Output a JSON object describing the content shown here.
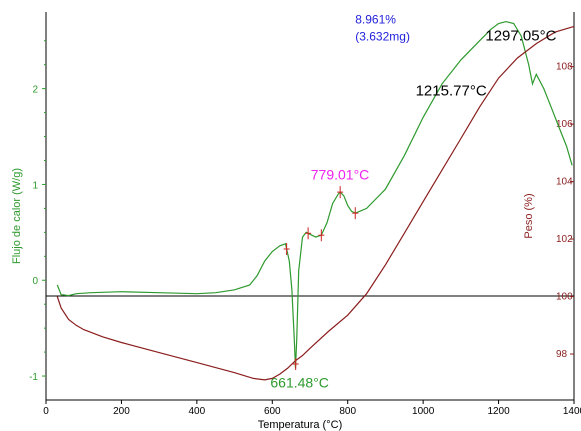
{
  "chart_data": {
    "type": "line",
    "xlabel": "Temperatura (°C)",
    "ylabel_left": "Flujo de calor (W/g)",
    "ylabel_right": "Peso (%)",
    "xlim": [
      0,
      1400
    ],
    "ylim_left": [
      -1.25,
      2.8
    ],
    "ylim_right": [
      96.4,
      109.9
    ],
    "x_ticks": [
      "0",
      "200",
      "400",
      "600",
      "800",
      "1000",
      "1200",
      "1400"
    ],
    "y_left_ticks": [
      "-1",
      "0",
      "1",
      "2"
    ],
    "y_right_ticks": [
      "98",
      "100",
      "102",
      "104",
      "106",
      "108"
    ],
    "grid": false,
    "colors": {
      "heat_flow": "#2e9a2e",
      "weight": "#8b1e1e",
      "annot_blue": "#2222dd",
      "annot_magenta": "#ee22ee",
      "annot_green": "#2e9a2e",
      "annot_black": "#000000"
    },
    "series": [
      {
        "axis": "left",
        "x": [
          30,
          35,
          40,
          60,
          80,
          120,
          200,
          300,
          400,
          450,
          500,
          540,
          560,
          580,
          600,
          620,
          635,
          645,
          652,
          658,
          661.5,
          665,
          670,
          680,
          690,
          700,
          715,
          730,
          745,
          760,
          775,
          780,
          790,
          800,
          810,
          820,
          850,
          900,
          950,
          1000,
          1050,
          1100,
          1150,
          1180,
          1200,
          1220,
          1240,
          1260,
          1280,
          1290,
          1300,
          1320,
          1340,
          1360,
          1380,
          1395
        ],
        "values": [
          -0.05,
          -0.1,
          -0.15,
          -0.16,
          -0.14,
          -0.13,
          -0.12,
          -0.13,
          -0.14,
          -0.13,
          -0.1,
          -0.05,
          0.05,
          0.2,
          0.3,
          0.36,
          0.38,
          0.2,
          -0.1,
          -0.6,
          -0.92,
          -0.6,
          0.1,
          0.45,
          0.5,
          0.48,
          0.45,
          0.47,
          0.6,
          0.8,
          0.9,
          0.92,
          0.88,
          0.78,
          0.72,
          0.7,
          0.75,
          0.95,
          1.3,
          1.7,
          2.05,
          2.3,
          2.5,
          2.62,
          2.68,
          2.7,
          2.68,
          2.55,
          2.25,
          2.05,
          2.15,
          2.0,
          1.8,
          1.6,
          1.4,
          1.2
        ]
      },
      {
        "axis": "right",
        "x": [
          30,
          40,
          60,
          80,
          100,
          150,
          200,
          300,
          400,
          500,
          550,
          580,
          600,
          620,
          640,
          660,
          680,
          700,
          750,
          800,
          850,
          900,
          950,
          1000,
          1050,
          1100,
          1150,
          1200,
          1250,
          1300,
          1350,
          1400
        ],
        "values": [
          100,
          99.6,
          99.2,
          99,
          98.85,
          98.6,
          98.4,
          98.05,
          97.7,
          97.35,
          97.15,
          97.1,
          97.15,
          97.3,
          97.5,
          97.75,
          97.95,
          98.2,
          98.8,
          99.35,
          100.1,
          101.1,
          102.2,
          103.3,
          104.4,
          105.5,
          106.6,
          107.6,
          108.3,
          108.8,
          109.2,
          109.4
        ]
      }
    ],
    "annotations": [
      {
        "text": "8.961%",
        "x": 820,
        "y": 2.68,
        "axis": "left",
        "color": "annot_blue"
      },
      {
        "text": "(3.632mg)",
        "x": 820,
        "y": 2.5,
        "axis": "left",
        "color": "annot_blue"
      },
      {
        "text": "1297.05°C",
        "x": 1165,
        "y": 2.5,
        "axis": "left",
        "color": "annot_black"
      },
      {
        "text": "1215.77°C",
        "x": 980,
        "y": 1.93,
        "axis": "left",
        "color": "annot_black"
      },
      {
        "text": "779.01°C",
        "x": 702,
        "y": 1.05,
        "axis": "left",
        "color": "annot_magenta"
      },
      {
        "text": "661.48°C",
        "x": 595,
        "y": -1.12,
        "axis": "left",
        "color": "annot_green"
      }
    ],
    "markers": [
      {
        "series": 0,
        "x": 638
      },
      {
        "series": 0,
        "x": 662
      },
      {
        "series": 0,
        "x": 695
      },
      {
        "series": 0,
        "x": 730
      },
      {
        "series": 0,
        "x": 780
      },
      {
        "series": 0,
        "x": 820
      }
    ]
  }
}
